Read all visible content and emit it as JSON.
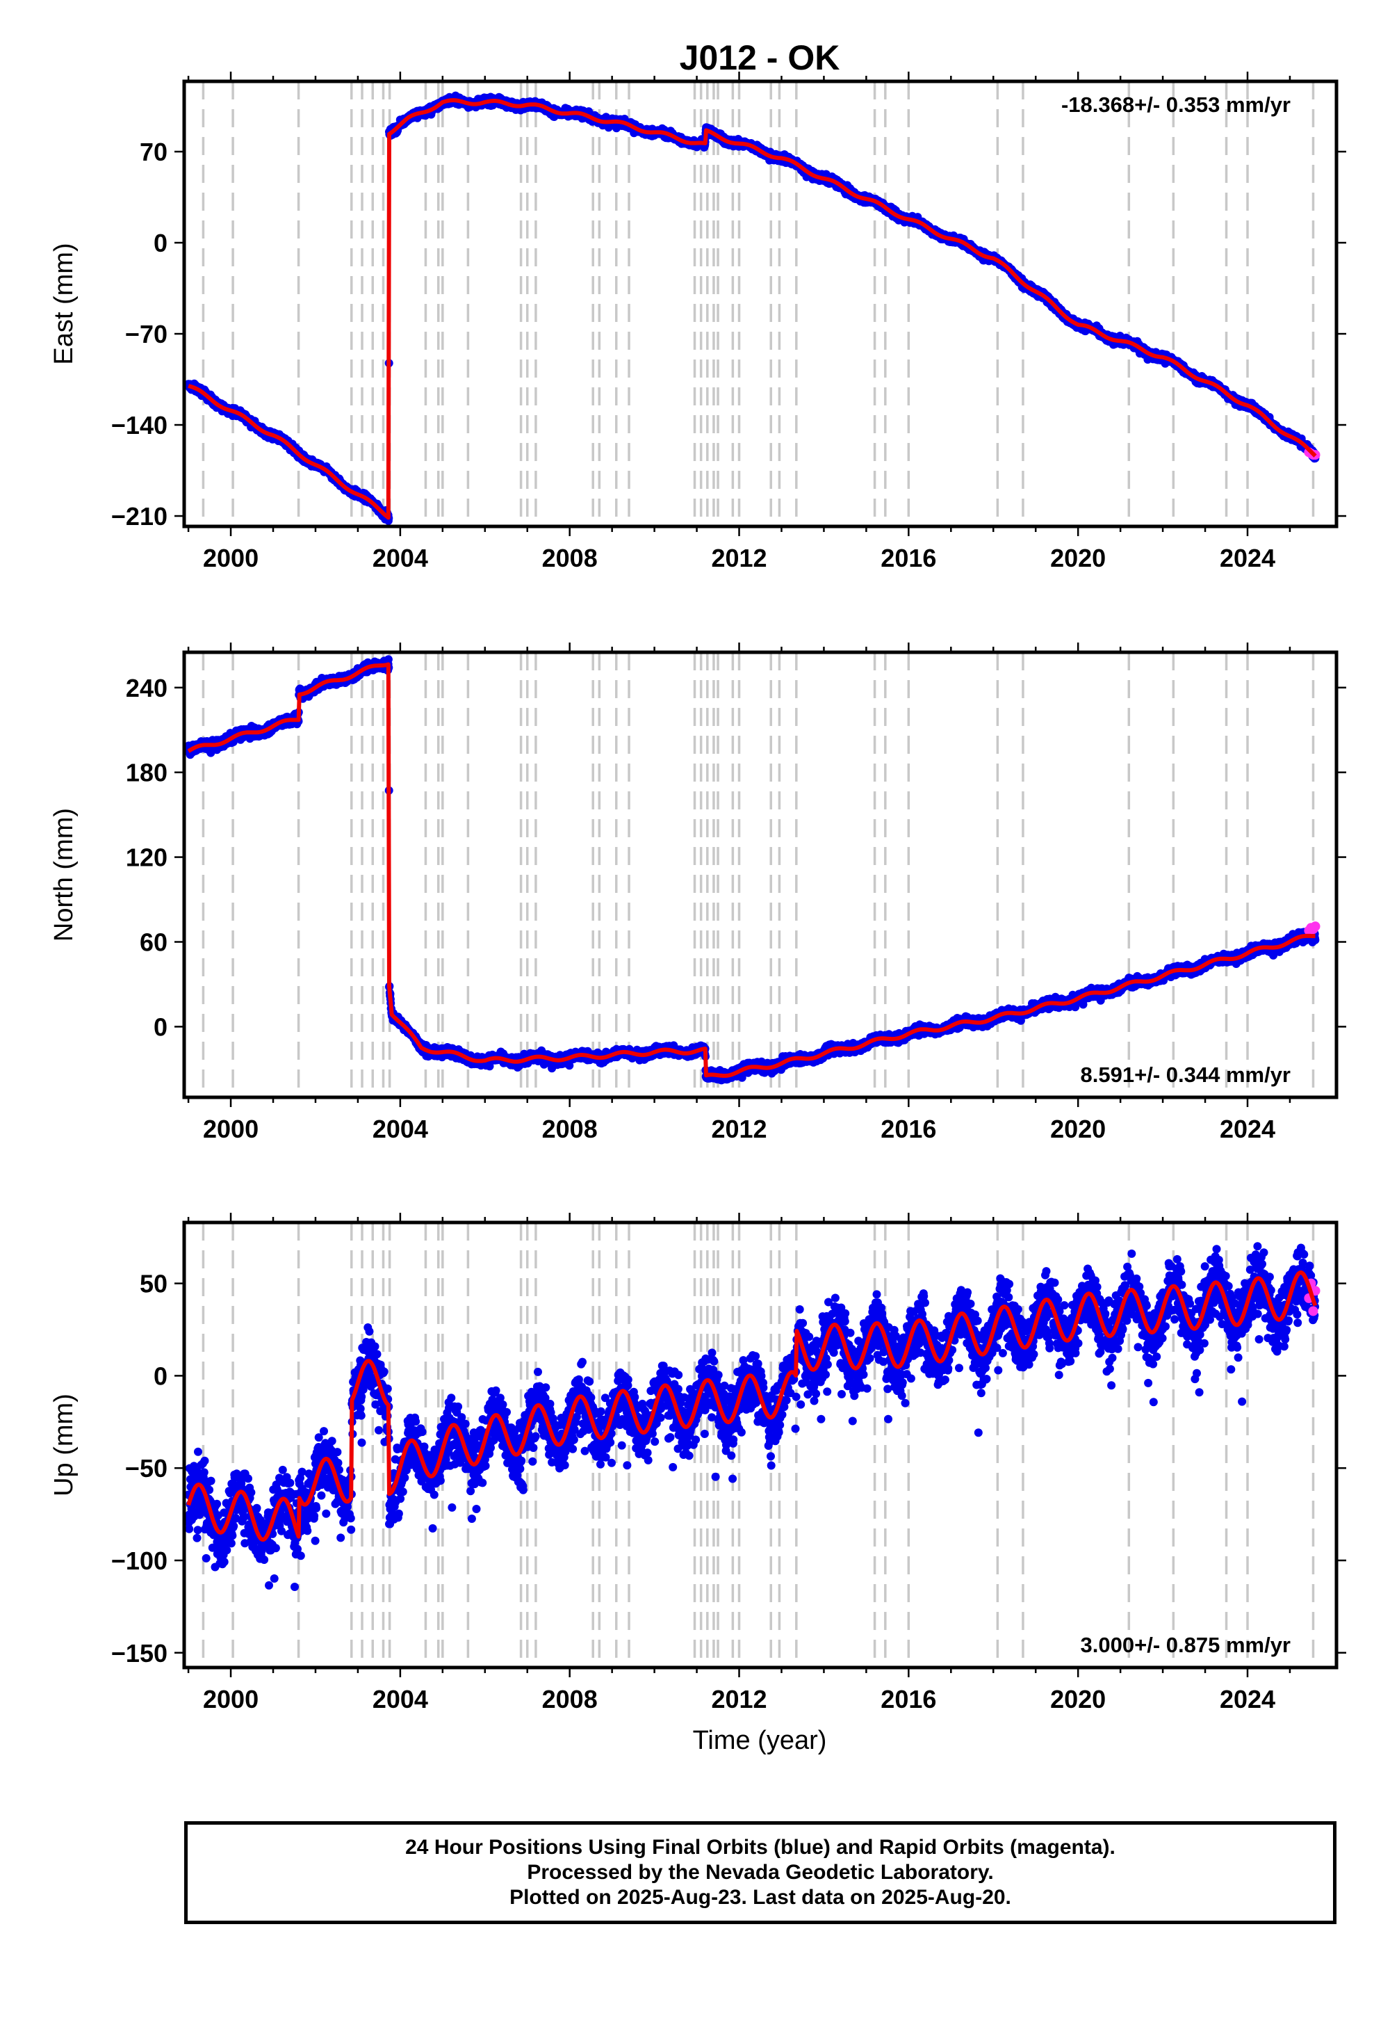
{
  "chart_data": {
    "type": "scatter",
    "title": "J012 - OK",
    "xlabel": "Time (year)",
    "xlim": [
      1998.9,
      2026.1
    ],
    "x_ticks": [
      2000,
      2004,
      2008,
      2012,
      2016,
      2020,
      2024
    ],
    "event_lines": [
      1999.35,
      2000.05,
      2001.6,
      2002.85,
      2003.1,
      2003.35,
      2003.6,
      2003.75,
      2004.6,
      2004.9,
      2005.0,
      2005.6,
      2006.85,
      2007.0,
      2007.2,
      2008.55,
      2008.7,
      2009.1,
      2009.4,
      2010.95,
      2011.1,
      2011.25,
      2011.4,
      2011.5,
      2011.85,
      2012.0,
      2012.75,
      2012.95,
      2013.35,
      2015.2,
      2015.45,
      2016.0,
      2018.1,
      2018.7,
      2021.2,
      2022.25,
      2023.5,
      2024.0,
      2025.55
    ],
    "colors": {
      "final_orbits": "#0000ee",
      "rapid_orbits": "#ff33ee",
      "model": "#ee0000",
      "event_line": "#c8c8c8"
    },
    "panels": [
      {
        "name": "east",
        "ylabel": "East (mm)",
        "ylim": [
          -218,
          124
        ],
        "y_ticks": [
          -210,
          -140,
          -70,
          0,
          70
        ],
        "y_tick_labels": [
          "−210",
          "−140",
          "−70",
          "0",
          "70"
        ],
        "rate": "-18.368+/- 0.353 mm/yr",
        "rate_position": "top-right",
        "noise": 1.4,
        "spike_prob": 0.01,
        "spike_size": 3,
        "seasonal_amp": 1.5,
        "model": [
          [
            1999.0,
            -110
          ],
          [
            2001.0,
            -148
          ],
          [
            2003.73,
            -210
          ],
          [
            2003.74,
            85
          ],
          [
            2004.2,
            95
          ],
          [
            2005.0,
            108
          ],
          [
            2006.0,
            108
          ],
          [
            2007.0,
            106
          ],
          [
            2009.0,
            93
          ],
          [
            2011.2,
            75
          ],
          [
            2011.21,
            85
          ],
          [
            2013.0,
            65
          ],
          [
            2016.0,
            18
          ],
          [
            2018.0,
            -12
          ],
          [
            2020.0,
            -63
          ],
          [
            2022.0,
            -88
          ],
          [
            2024.0,
            -125
          ],
          [
            2025.6,
            -163
          ]
        ],
        "rapid": [
          [
            2025.45,
            -161
          ],
          [
            2025.5,
            -162
          ],
          [
            2025.55,
            -163
          ],
          [
            2025.6,
            -163
          ]
        ]
      },
      {
        "name": "north",
        "ylabel": "North (mm)",
        "ylim": [
          -50,
          265
        ],
        "y_ticks": [
          0,
          60,
          120,
          180,
          240
        ],
        "y_tick_labels": [
          "0",
          "60",
          "120",
          "180",
          "240"
        ],
        "rate": "8.591+/- 0.344 mm/yr",
        "rate_position": "bottom-right",
        "noise": 1.6,
        "spike_prob": 0.01,
        "spike_size": 4,
        "seasonal_amp": 1.5,
        "model": [
          [
            1999.0,
            195
          ],
          [
            2001.6,
            218
          ],
          [
            2001.61,
            236
          ],
          [
            2003.73,
            258
          ],
          [
            2003.74,
            30
          ],
          [
            2003.8,
            10
          ],
          [
            2004.5,
            -15
          ],
          [
            2006.0,
            -24
          ],
          [
            2008.0,
            -22
          ],
          [
            2010.0,
            -18
          ],
          [
            2011.2,
            -17
          ],
          [
            2011.21,
            -36
          ],
          [
            2013.0,
            -26
          ],
          [
            2016.0,
            -5
          ],
          [
            2018.0,
            6
          ],
          [
            2020.0,
            20
          ],
          [
            2022.0,
            36
          ],
          [
            2024.0,
            52
          ],
          [
            2025.6,
            65
          ]
        ],
        "rapid": [
          [
            2025.45,
            68
          ],
          [
            2025.5,
            70
          ],
          [
            2025.55,
            69
          ],
          [
            2025.6,
            71
          ]
        ]
      },
      {
        "name": "up",
        "ylabel": "Up (mm)",
        "ylim": [
          -158,
          83
        ],
        "y_ticks": [
          -150,
          -100,
          -50,
          0,
          50
        ],
        "y_tick_labels": [
          "−150",
          "−100",
          "−50",
          "0",
          "50"
        ],
        "rate": "3.000+/- 0.875 mm/yr",
        "rate_position": "bottom-right",
        "noise": 8,
        "spike_prob": 0.05,
        "spike_size": 30,
        "seasonal_amp": 12,
        "model": [
          [
            1999.0,
            -70
          ],
          [
            2001.6,
            -80
          ],
          [
            2001.61,
            -58
          ],
          [
            2002.85,
            -56
          ],
          [
            2002.86,
            -4
          ],
          [
            2003.73,
            -4
          ],
          [
            2003.74,
            -52
          ],
          [
            2005.0,
            -40
          ],
          [
            2008.0,
            -24
          ],
          [
            2011.0,
            -15
          ],
          [
            2013.0,
            -10
          ],
          [
            2013.35,
            -10
          ],
          [
            2013.36,
            15
          ],
          [
            2016.0,
            17
          ],
          [
            2020.0,
            32
          ],
          [
            2024.0,
            40
          ],
          [
            2025.6,
            45
          ]
        ],
        "rapid": [
          [
            2025.45,
            42
          ],
          [
            2025.5,
            50
          ],
          [
            2025.55,
            35
          ],
          [
            2025.6,
            46
          ]
        ]
      }
    ],
    "footer": [
      "24 Hour Positions Using Final Orbits (blue) and Rapid Orbits (magenta).",
      "Processed by the Nevada Geodetic Laboratory.",
      "Plotted on 2025-Aug-23. Last data on 2025-Aug-20."
    ]
  }
}
